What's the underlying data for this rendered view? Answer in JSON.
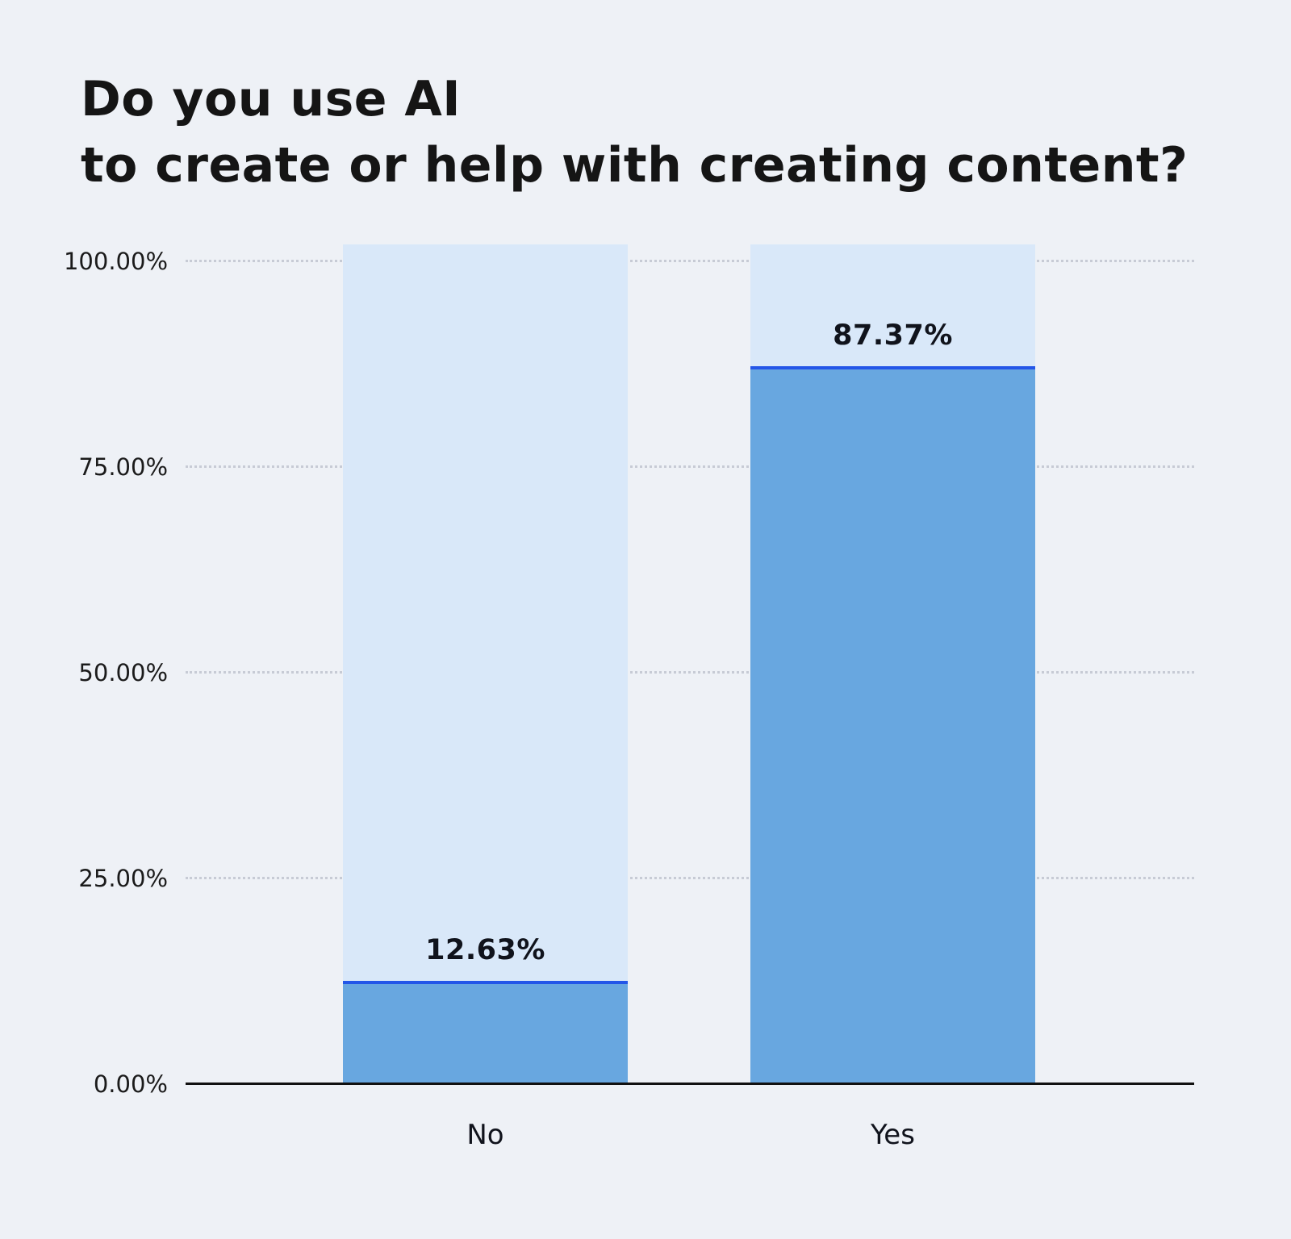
{
  "title": {
    "lines": [
      "Do you use AI",
      "to create or help with creating content?"
    ]
  },
  "chart_data": {
    "type": "bar",
    "title": "Do you use AI to create or help with creating content?",
    "categories": [
      "No",
      "Yes"
    ],
    "values": [
      12.63,
      87.37
    ],
    "value_labels": [
      "12.63%",
      "87.37%"
    ],
    "xlabel": "",
    "ylabel": "",
    "ylim": [
      0,
      100
    ],
    "ytick_values": [
      100,
      75,
      50,
      25,
      0
    ],
    "ytick_labels": [
      "100.00%",
      "75.00%",
      "50.00%",
      "25.00%",
      "0.00%"
    ],
    "grid": "horizontal-dotted",
    "legend": "none",
    "colors": {
      "background": "#eef1f6",
      "bar_track": "#d9e8f9",
      "bar_fill": "#68a7e0",
      "bar_top_line": "#2356e8",
      "axis": "#111111",
      "text": "#10131c",
      "gridline": "#c7cbd5"
    }
  }
}
